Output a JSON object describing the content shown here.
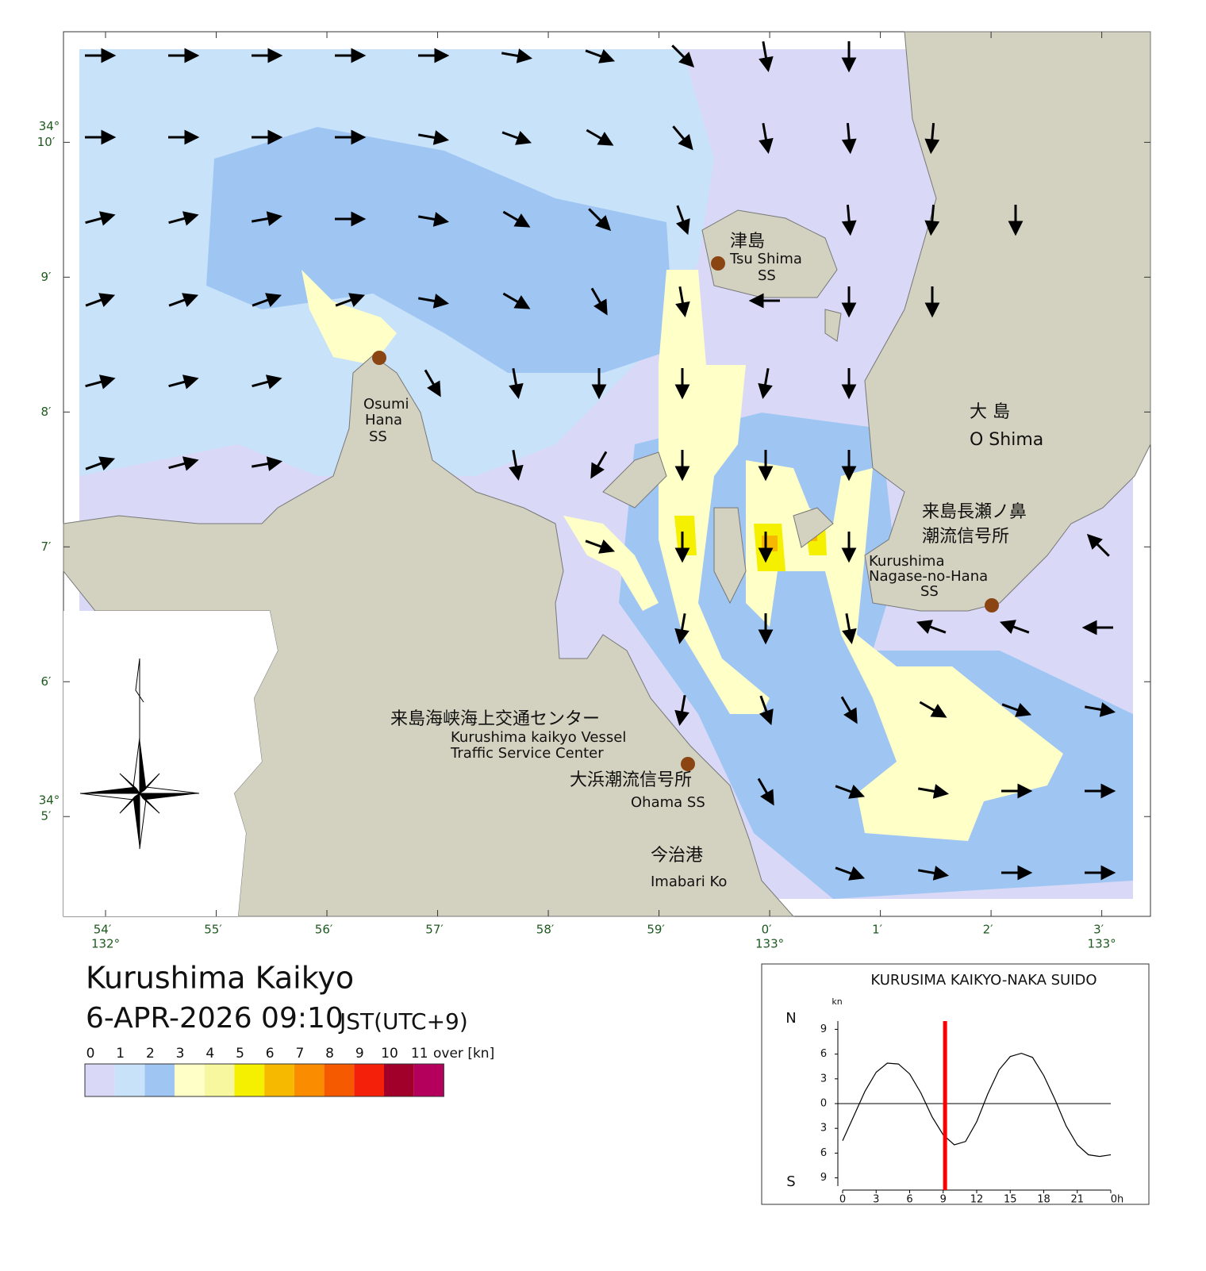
{
  "map": {
    "title": "Kurushima Kaikyo",
    "datetime": "6-APR-2026 09:10",
    "timezone": "JST(UTC+9)",
    "lon_lim": [
      53.62,
      63.44
    ],
    "lat_lim": [
      4.26,
      10.82
    ],
    "lon_ticks": [
      {
        "value": 54,
        "label": "54′"
      },
      {
        "value": 55,
        "label": "55′"
      },
      {
        "value": 56,
        "label": "56′"
      },
      {
        "value": 57,
        "label": "57′"
      },
      {
        "value": 58,
        "label": "58′"
      },
      {
        "value": 59,
        "label": "59′"
      },
      {
        "value": 60,
        "label": "0′"
      },
      {
        "value": 61,
        "label": "1′"
      },
      {
        "value": 62,
        "label": "2′"
      },
      {
        "value": 63,
        "label": "3′"
      }
    ],
    "lon_degree_labels": [
      {
        "value": 54,
        "label": "132°"
      },
      {
        "value": 60,
        "label": "133°"
      },
      {
        "value": 63,
        "label": "133°"
      }
    ],
    "lat_ticks": [
      {
        "value": 5,
        "label": "5′"
      },
      {
        "value": 6,
        "label": "6′"
      },
      {
        "value": 7,
        "label": "7′"
      },
      {
        "value": 8,
        "label": "8′"
      },
      {
        "value": 9,
        "label": "9′"
      },
      {
        "value": 10,
        "label": "10′"
      }
    ],
    "lat_degree_labels": [
      {
        "value": 5,
        "label": "34°"
      },
      {
        "value": 10,
        "label": "34°"
      }
    ],
    "places": [
      [
        "津島",
        "Tsu Shima",
        "SS"
      ],
      [
        "Osumi",
        "Hana",
        "SS"
      ],
      [
        "大 島",
        "O Shima"
      ],
      [
        "来島長瀬ノ鼻",
        "潮流信号所",
        "Kurushima",
        "Nagase-no-Hana",
        "SS"
      ],
      [
        "来島海峡海上交通センター",
        "Kurushima kaikyo Vessel",
        "Traffic Service Center"
      ],
      [
        "大浜潮流信号所",
        "Ohama SS"
      ],
      [
        "今治港",
        "Imabari Ko"
      ]
    ],
    "current_arrows": {
      "directions": [
        [
          0,
          0,
          0,
          0,
          0,
          10,
          20,
          45,
          80,
          90,
          null,
          null,
          null
        ],
        [
          0,
          0,
          0,
          0,
          10,
          20,
          30,
          50,
          80,
          85,
          95,
          null,
          null
        ],
        [
          -15,
          -15,
          -10,
          0,
          10,
          30,
          45,
          70,
          null,
          85,
          95,
          90,
          null
        ],
        [
          -20,
          -20,
          -20,
          -20,
          10,
          30,
          60,
          80,
          180,
          90,
          90,
          null,
          null
        ],
        [
          -15,
          -15,
          -15,
          null,
          60,
          80,
          90,
          90,
          100,
          90,
          null,
          null,
          null
        ],
        [
          -20,
          -15,
          -10,
          null,
          null,
          80,
          120,
          90,
          90,
          90,
          null,
          null,
          null
        ],
        [
          null,
          null,
          null,
          null,
          null,
          null,
          20,
          90,
          90,
          90,
          null,
          null,
          225
        ],
        [
          null,
          null,
          null,
          null,
          null,
          null,
          null,
          100,
          90,
          80,
          200,
          200,
          180
        ],
        [
          null,
          null,
          null,
          null,
          null,
          null,
          null,
          100,
          70,
          60,
          30,
          20,
          10
        ],
        [
          null,
          null,
          null,
          null,
          null,
          null,
          null,
          null,
          60,
          20,
          10,
          0,
          0
        ],
        [
          null,
          null,
          null,
          null,
          null,
          null,
          null,
          null,
          null,
          20,
          10,
          0,
          0
        ]
      ]
    },
    "legend": {
      "labels": [
        0,
        1,
        2,
        3,
        4,
        5,
        6,
        7,
        8,
        9,
        10,
        11
      ],
      "unit": "over [kn]",
      "colors": [
        "#d9d9f7",
        "#c8e2fa",
        "#9fc6f3",
        "#ffffc8",
        "#f7f7a0",
        "#f5ef00",
        "#f7b800",
        "#fa8c00",
        "#f55a00",
        "#f5200a",
        "#a0002a",
        "#b4005c"
      ]
    }
  },
  "chart_data": {
    "type": "line",
    "title": "KURUSIMA KAIKYO-NAKA SUIDO",
    "y_label": "kn",
    "direction_labels": [
      "N",
      "S"
    ],
    "x": [
      0,
      1,
      2,
      3,
      4,
      5,
      6,
      7,
      8,
      9,
      10,
      11,
      12,
      13,
      14,
      15,
      16,
      17,
      18,
      19,
      20,
      21,
      22,
      23,
      24
    ],
    "values": [
      -4.5,
      -1.5,
      1.5,
      3.8,
      4.9,
      4.8,
      3.6,
      1.3,
      -1.6,
      -3.8,
      -5.0,
      -4.6,
      -2.2,
      1.2,
      4.1,
      5.7,
      6.1,
      5.6,
      3.4,
      0.5,
      -2.7,
      -5.0,
      -6.2,
      -6.4,
      -6.2
    ],
    "color": "#000000",
    "time_marker": 9.17,
    "marker_color": "#ff0000",
    "xlim": [
      0,
      24
    ],
    "ylim": [
      -10,
      10
    ],
    "xticks": [
      0,
      3,
      6,
      9,
      12,
      15,
      18,
      21,
      {
        "value": 24,
        "label": "0h"
      }
    ],
    "yticks": [
      9,
      6,
      3,
      0,
      {
        "value": -3,
        "label": "3"
      },
      {
        "value": -6,
        "label": "6"
      },
      {
        "value": -9,
        "label": "9"
      }
    ]
  }
}
